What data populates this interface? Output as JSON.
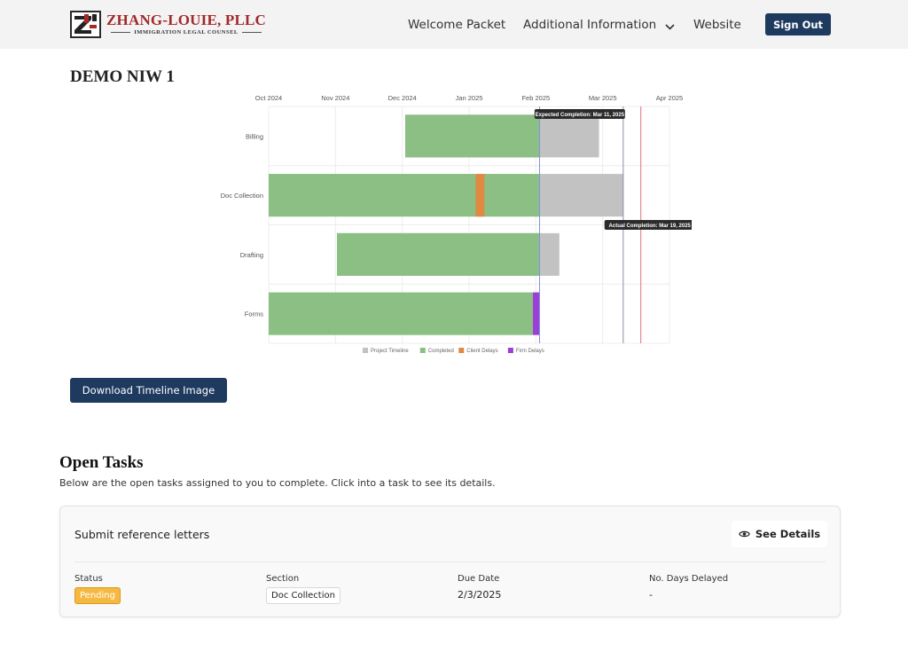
{
  "header": {
    "logo_name": "ZHANG-LOUIE, PLLC",
    "logo_subtitle": "IMMIGRATION LEGAL COUNSEL",
    "nav": {
      "welcome": "Welcome Packet",
      "info": "Additional Information",
      "website": "Website",
      "sign_out": "Sign Out"
    }
  },
  "project": {
    "title": "DEMO NIW 1"
  },
  "chart_data": {
    "type": "gantt",
    "x_ticks": [
      "Oct 2024",
      "Nov 2024",
      "Dec 2024",
      "Jan 2025",
      "Feb 2025",
      "Mar 2025",
      "Apr 2025"
    ],
    "x_range": [
      "2024-10-01",
      "2025-04-01"
    ],
    "categories": [
      "Billing",
      "Doc Collection",
      "Drafting",
      "Forms"
    ],
    "current_date": "2025-02-01",
    "bars": [
      {
        "category": "Billing",
        "series": "Project Timeline",
        "start": "2024-12-02",
        "end": "2025-02-28"
      },
      {
        "category": "Billing",
        "series": "Completed",
        "start": "2024-12-02",
        "end": "2025-02-01"
      },
      {
        "category": "Doc Collection",
        "series": "Project Timeline",
        "start": "2024-10-01",
        "end": "2025-03-11"
      },
      {
        "category": "Doc Collection",
        "series": "Completed",
        "start": "2024-10-01",
        "end": "2025-02-01"
      },
      {
        "category": "Doc Collection",
        "series": "Client Delays",
        "start": "2025-01-03",
        "end": "2025-01-07"
      },
      {
        "category": "Drafting",
        "series": "Project Timeline",
        "start": "2024-11-01",
        "end": "2025-02-10"
      },
      {
        "category": "Drafting",
        "series": "Completed",
        "start": "2024-11-01",
        "end": "2025-02-01"
      },
      {
        "category": "Forms",
        "series": "Completed",
        "start": "2024-10-01",
        "end": "2025-01-29"
      },
      {
        "category": "Forms",
        "series": "Firm Delays",
        "start": "2025-01-29",
        "end": "2025-02-01"
      }
    ],
    "markers": [
      {
        "label": "Expected Completion: Mar 11, 2025",
        "date": "2025-03-11",
        "color": "#8a8fa8"
      },
      {
        "label": "Actual Completion: Mar 19, 2025",
        "date": "2025-03-19",
        "color": "#e2707a"
      }
    ],
    "legend": [
      {
        "name": "Project Timeline",
        "color": "#c2c2c2"
      },
      {
        "name": "Completed",
        "color": "#8bbf84"
      },
      {
        "name": "Client Delays",
        "color": "#e08942"
      },
      {
        "name": "Firm Delays",
        "color": "#9b3fd6"
      }
    ],
    "legend_position": "bottom",
    "grid": true
  },
  "actions": {
    "download": "Download Timeline Image"
  },
  "tasks": {
    "title": "Open Tasks",
    "description": "Below are the open tasks assigned to you to complete. Click into a task to see its details.",
    "items": [
      {
        "name": "Submit reference letters",
        "see_details": "See Details",
        "status_label": "Status",
        "status": "Pending",
        "section_label": "Section",
        "section": "Doc Collection",
        "due_label": "Due Date",
        "due": "2/3/2025",
        "delay_label": "No. Days Delayed",
        "delay": "-"
      }
    ]
  }
}
